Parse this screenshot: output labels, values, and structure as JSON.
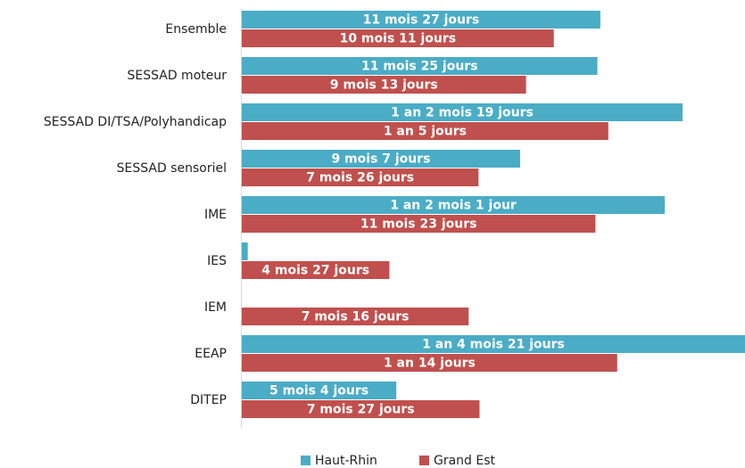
{
  "chart_data": {
    "type": "bar",
    "orientation": "horizontal",
    "categories": [
      "Ensemble",
      "SESSAD moteur",
      "SESSAD DI/TSA/Polyhandicap",
      "SESSAD sensoriel",
      "IME",
      "IES",
      "IEM",
      "EEAP",
      "DITEP"
    ],
    "series": [
      {
        "name": "Haut-Rhin",
        "color": "#4bacc6",
        "values": [
          362,
          359,
          445,
          281,
          427,
          6,
          null,
          508,
          156
        ],
        "value_labels": [
          "11 mois 27 jours",
          "11 mois 25 jours",
          "1 an 2 mois 19 jours",
          "9 mois 7 jours",
          "1 an 2 mois 1 jour",
          null,
          null,
          "1 an 4 mois 21 jours",
          "5 mois 4 jours"
        ]
      },
      {
        "name": "Grand Est",
        "color": "#c0504d",
        "values": [
          315,
          287,
          370,
          239,
          357,
          149,
          229,
          379,
          240
        ],
        "value_labels": [
          "10 mois 11 jours",
          "9 mois 13 jours",
          "1 an 5 jours",
          "7 mois 26 jours",
          "11 mois 23 jours",
          "4 mois 27 jours",
          "7 mois 16 jours",
          "1 an 14 jours",
          "7 mois 27 jours"
        ]
      }
    ],
    "legend": "bottom"
  }
}
